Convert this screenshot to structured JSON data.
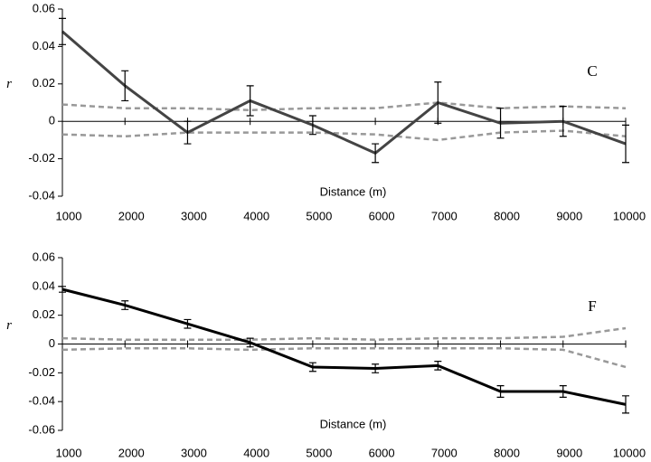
{
  "chart_data": [
    {
      "type": "line",
      "annotation": "C",
      "xlabel": "Distance (m)",
      "ylabel": "r",
      "x": [
        1000,
        2000,
        3000,
        4000,
        5000,
        6000,
        7000,
        8000,
        9000,
        10000
      ],
      "xlim": [
        1000,
        10000
      ],
      "xticks": [
        1000,
        2000,
        3000,
        4000,
        5000,
        6000,
        7000,
        8000,
        9000,
        10000
      ],
      "ylim": [
        -0.04,
        0.06
      ],
      "yticks": [
        -0.04,
        -0.02,
        0,
        0.02,
        0.04,
        0.06
      ],
      "series": [
        {
          "color": "#444444",
          "style": "solid",
          "values": [
            0.048,
            0.019,
            -0.006,
            0.011,
            -0.002,
            -0.017,
            0.01,
            -0.001,
            0.0,
            -0.012
          ],
          "errors": [
            0.007,
            0.008,
            0.006,
            0.008,
            0.005,
            0.005,
            0.011,
            0.008,
            0.008,
            0.01
          ]
        },
        {
          "color": "#999999",
          "style": "dashed",
          "values": [
            0.009,
            0.007,
            0.007,
            0.006,
            0.007,
            0.007,
            0.01,
            0.007,
            0.008,
            0.007
          ]
        },
        {
          "color": "#999999",
          "style": "dashed",
          "values": [
            -0.007,
            -0.008,
            -0.006,
            -0.006,
            -0.006,
            -0.007,
            -0.01,
            -0.006,
            -0.005,
            -0.008
          ]
        }
      ]
    },
    {
      "type": "line",
      "annotation": "F",
      "xlabel": "Distance (m)",
      "ylabel": "r",
      "x": [
        1000,
        2000,
        3000,
        4000,
        5000,
        6000,
        7000,
        8000,
        9000,
        10000
      ],
      "xlim": [
        1000,
        10000
      ],
      "xticks": [
        1000,
        2000,
        3000,
        4000,
        5000,
        6000,
        7000,
        8000,
        9000,
        10000
      ],
      "ylim": [
        -0.06,
        0.06
      ],
      "yticks": [
        -0.06,
        -0.04,
        -0.02,
        0,
        0.02,
        0.04,
        0.06
      ],
      "series": [
        {
          "color": "#000000",
          "style": "solid",
          "values": [
            0.038,
            0.027,
            0.014,
            0.001,
            -0.016,
            -0.017,
            -0.015,
            -0.033,
            -0.033,
            -0.042
          ],
          "errors": [
            0.002,
            0.003,
            0.003,
            0.003,
            0.003,
            0.003,
            0.003,
            0.004,
            0.004,
            0.006
          ]
        },
        {
          "color": "#999999",
          "style": "dashed",
          "values": [
            0.004,
            0.003,
            0.003,
            0.003,
            0.004,
            0.003,
            0.004,
            0.004,
            0.005,
            0.011
          ]
        },
        {
          "color": "#999999",
          "style": "dashed",
          "values": [
            -0.004,
            -0.003,
            -0.003,
            -0.004,
            -0.003,
            -0.003,
            -0.003,
            -0.003,
            -0.004,
            -0.016
          ]
        }
      ]
    }
  ]
}
